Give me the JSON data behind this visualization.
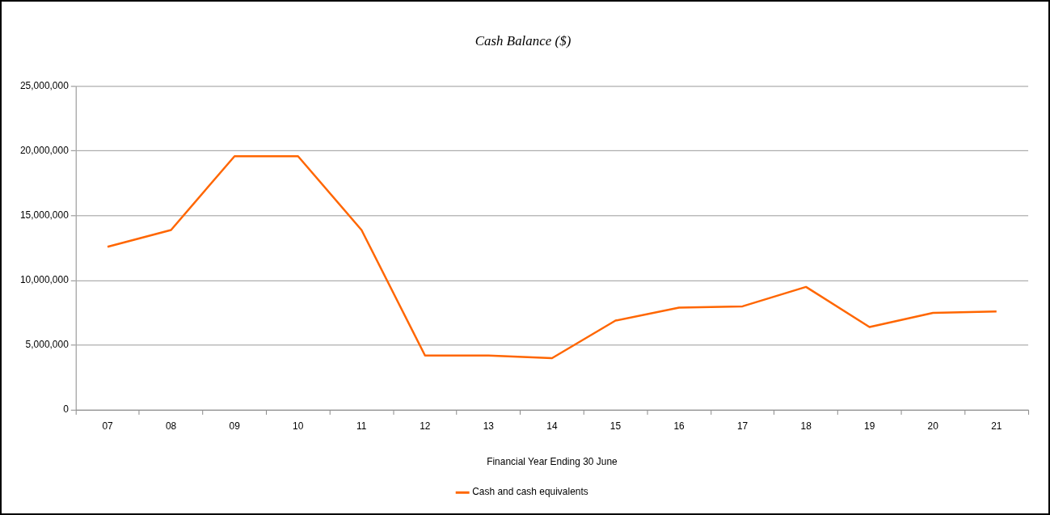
{
  "chart_data": {
    "type": "line",
    "title": "Cash Balance ($)",
    "xlabel": "Financial Year Ending 30 June",
    "categories": [
      "07",
      "08",
      "09",
      "10",
      "11",
      "12",
      "13",
      "14",
      "15",
      "16",
      "17",
      "18",
      "19",
      "20",
      "21"
    ],
    "series": [
      {
        "name": "Cash and cash equivalents",
        "color": "#ff6600",
        "values": [
          12600000,
          13900000,
          19600000,
          19600000,
          13900000,
          4200000,
          4200000,
          4000000,
          6900000,
          7900000,
          8000000,
          9500000,
          6400000,
          7500000,
          7600000
        ]
      }
    ],
    "ylim": [
      0,
      25000000
    ],
    "yticks": [
      {
        "value": 0,
        "label": "0"
      },
      {
        "value": 5000000,
        "label": "5,000,000"
      },
      {
        "value": 10000000,
        "label": "10,000,000"
      },
      {
        "value": 15000000,
        "label": "15,000,000"
      },
      {
        "value": 20000000,
        "label": "20,000,000"
      },
      {
        "value": 25000000,
        "label": "25,000,000"
      }
    ],
    "grid": "y",
    "legend": "bottom",
    "marker": "none",
    "line_style": "solid"
  }
}
